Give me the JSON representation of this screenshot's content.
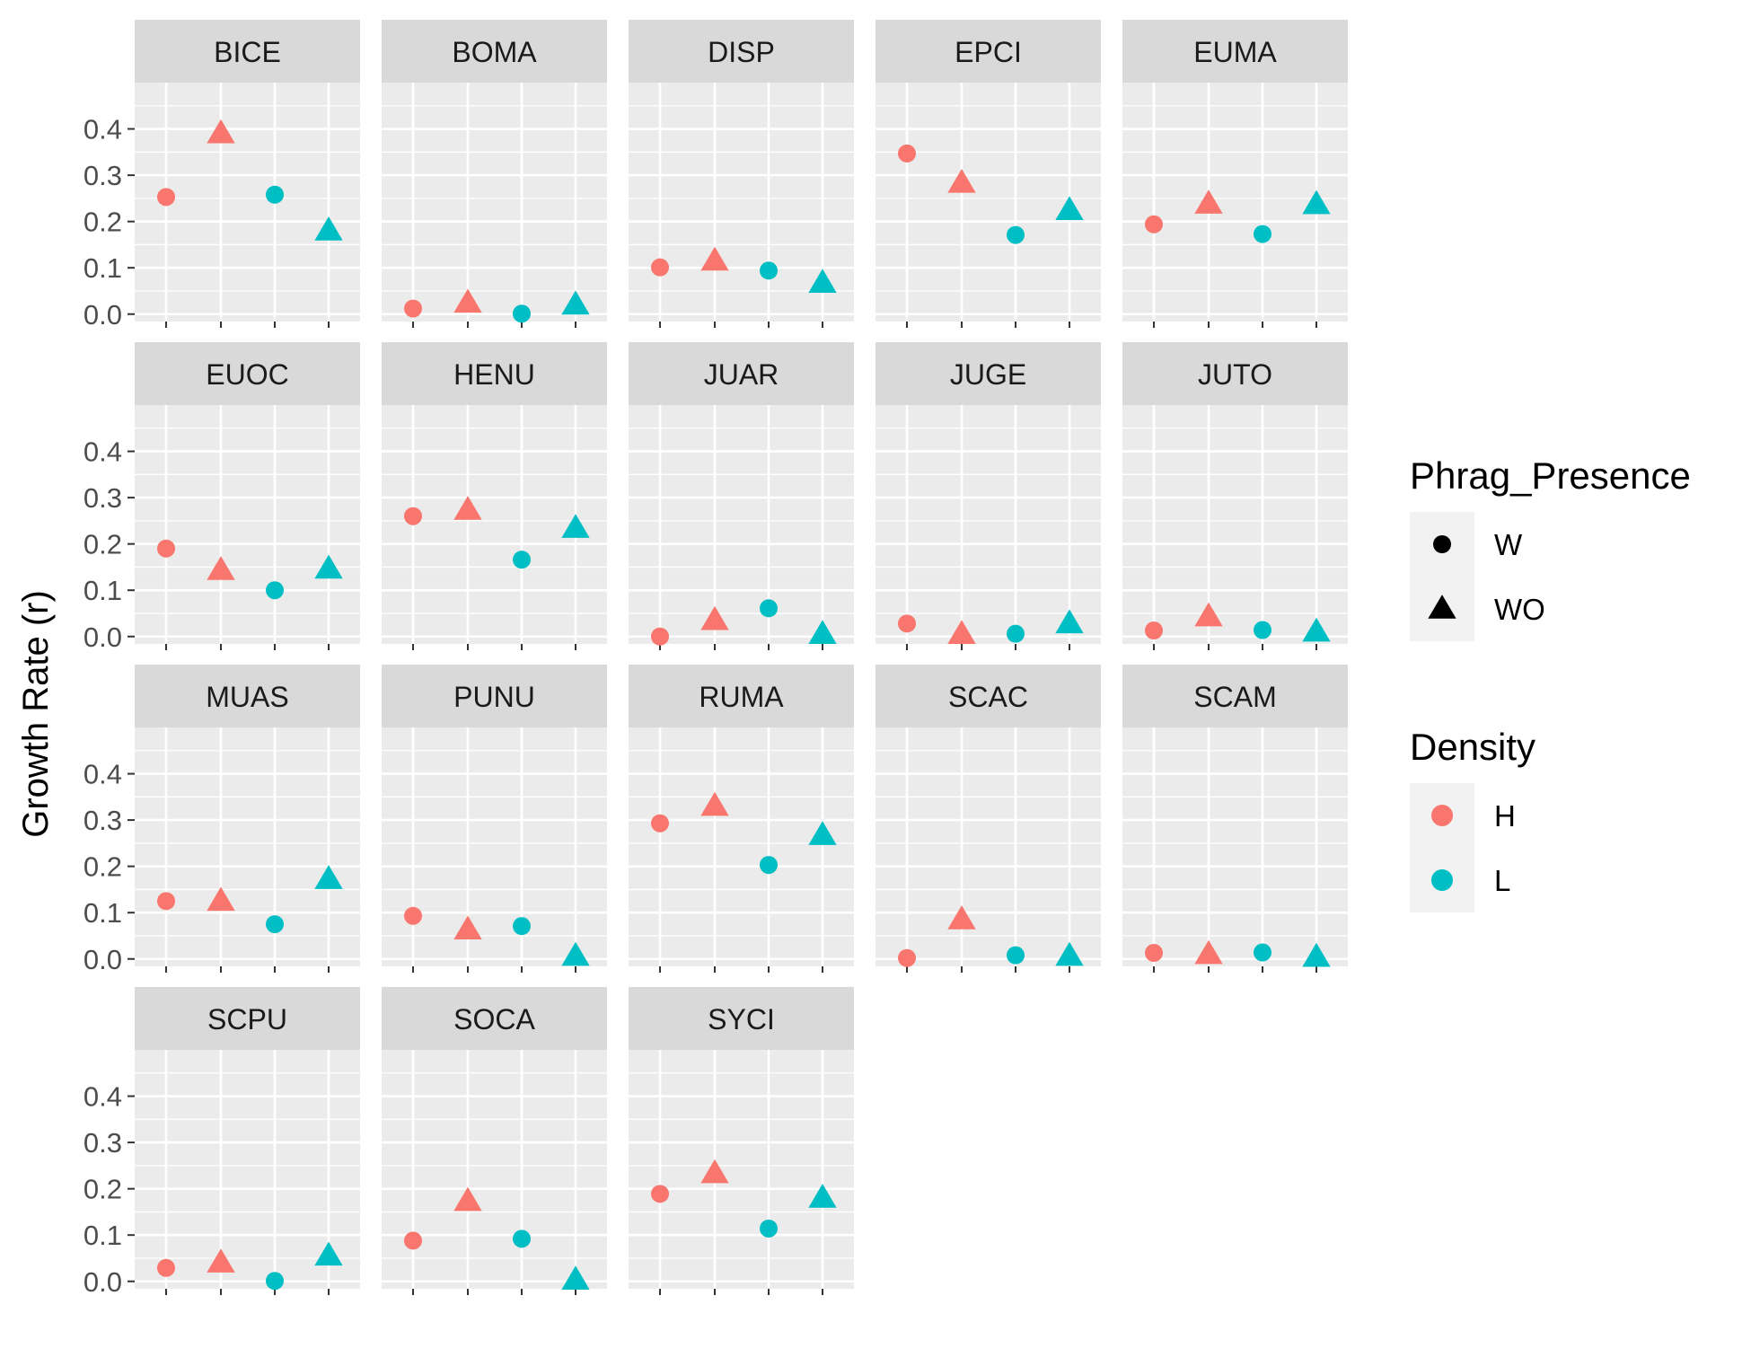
{
  "chart_data": {
    "type": "scatter",
    "ylabel": "Growth Rate (r)",
    "xlabel": "",
    "ylim": [
      -0.016,
      0.5
    ],
    "yticks": [
      0.0,
      0.1,
      0.2,
      0.3,
      0.4
    ],
    "ytick_labels": [
      "0.0",
      "0.1",
      "0.2",
      "0.3",
      "0.4"
    ],
    "grid": true,
    "facet_columns": 5,
    "point_order": [
      {
        "phrag": "W",
        "density": "H"
      },
      {
        "phrag": "WO",
        "density": "H"
      },
      {
        "phrag": "W",
        "density": "L"
      },
      {
        "phrag": "WO",
        "density": "L"
      }
    ],
    "panels": [
      {
        "name": "BICE",
        "values": [
          0.253,
          0.39,
          0.258,
          0.18
        ]
      },
      {
        "name": "BOMA",
        "values": [
          0.012,
          0.024,
          0.001,
          0.02
        ]
      },
      {
        "name": "DISP",
        "values": [
          0.101,
          0.115,
          0.094,
          0.067
        ]
      },
      {
        "name": "EPCI",
        "values": [
          0.347,
          0.283,
          0.171,
          0.224
        ]
      },
      {
        "name": "EUMA",
        "values": [
          0.194,
          0.238,
          0.173,
          0.237
        ]
      },
      {
        "name": "EUOC",
        "values": [
          0.19,
          0.143,
          0.1,
          0.146
        ]
      },
      {
        "name": "HENU",
        "values": [
          0.26,
          0.273,
          0.166,
          0.234
        ]
      },
      {
        "name": "JUAR",
        "values": [
          0.0,
          0.035,
          0.061,
          0.005
        ]
      },
      {
        "name": "JUGE",
        "values": [
          0.028,
          0.005,
          0.006,
          0.028
        ]
      },
      {
        "name": "JUTO",
        "values": [
          0.013,
          0.043,
          0.014,
          0.01
        ]
      },
      {
        "name": "MUAS",
        "values": [
          0.125,
          0.125,
          0.075,
          0.172
        ]
      },
      {
        "name": "PUNU",
        "values": [
          0.093,
          0.063,
          0.071,
          0.006
        ]
      },
      {
        "name": "RUMA",
        "values": [
          0.293,
          0.33,
          0.203,
          0.267
        ]
      },
      {
        "name": "SCAC",
        "values": [
          0.002,
          0.085,
          0.008,
          0.006
        ]
      },
      {
        "name": "SCAM",
        "values": [
          0.013,
          0.01,
          0.014,
          0.004
        ]
      },
      {
        "name": "SCPU",
        "values": [
          0.029,
          0.04,
          0.001,
          0.055
        ]
      },
      {
        "name": "SOCA",
        "values": [
          0.088,
          0.173,
          0.092,
          0.003
        ]
      },
      {
        "name": "SYCI",
        "values": [
          0.189,
          0.233,
          0.114,
          0.18
        ]
      }
    ],
    "legends": [
      {
        "title": "Phrag_Presence",
        "entries": [
          {
            "label": "W",
            "shape": "circle"
          },
          {
            "label": "WO",
            "shape": "triangle"
          }
        ]
      },
      {
        "title": "Density",
        "entries": [
          {
            "label": "H",
            "color": "#F8766D"
          },
          {
            "label": "L",
            "color": "#00BFC4"
          }
        ]
      }
    ],
    "legend_position": "right",
    "colors": {
      "H": "#F8766D",
      "L": "#00BFC4",
      "panel_bg": "#EBEBEB",
      "strip_bg": "#D9D9D9",
      "grid": "#FFFFFF"
    }
  }
}
